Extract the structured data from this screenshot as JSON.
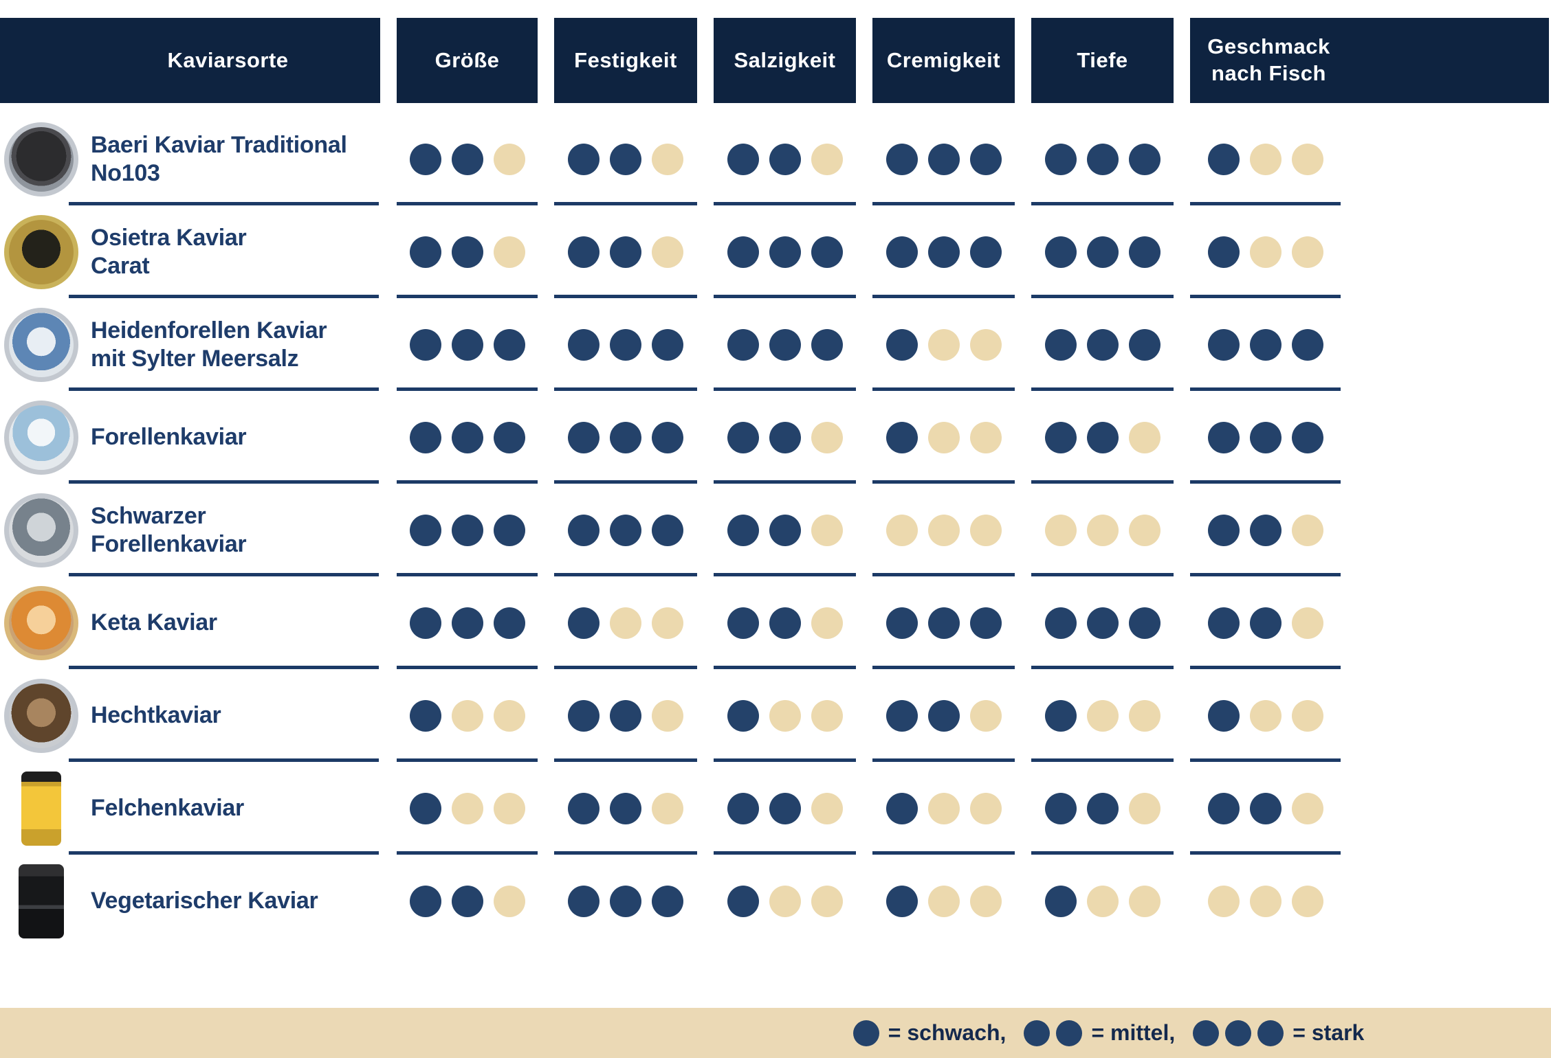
{
  "table": {
    "columns": [
      {
        "label": "Kaviarsorte"
      },
      {
        "label": "Größe"
      },
      {
        "label": "Festigkeit"
      },
      {
        "label": "Salzigkeit"
      },
      {
        "label": "Cremigkeit"
      },
      {
        "label": "Tiefe"
      },
      {
        "label": "Geschmack\nnach Fisch"
      }
    ],
    "max_rating": 3,
    "rows": [
      {
        "name": "Baeri Kaviar Traditional\nNo103",
        "image": "baeri",
        "ratings": [
          2,
          2,
          2,
          3,
          3,
          1
        ]
      },
      {
        "name": "Osietra Kaviar\nCarat",
        "image": "osietra",
        "ratings": [
          2,
          2,
          3,
          3,
          3,
          1
        ]
      },
      {
        "name": "Heidenforellen Kaviar\nmit Sylter Meersalz",
        "image": "heidenforellen",
        "ratings": [
          3,
          3,
          3,
          1,
          3,
          3
        ]
      },
      {
        "name": "Forellenkaviar",
        "image": "forellen",
        "ratings": [
          3,
          3,
          2,
          1,
          2,
          3
        ]
      },
      {
        "name": "Schwarzer\nForellenkaviar",
        "image": "schwarzer",
        "ratings": [
          3,
          3,
          2,
          0,
          0,
          2
        ]
      },
      {
        "name": "Keta Kaviar",
        "image": "keta",
        "ratings": [
          3,
          1,
          2,
          3,
          3,
          2
        ]
      },
      {
        "name": "Hechtkaviar",
        "image": "hecht",
        "ratings": [
          1,
          2,
          1,
          2,
          1,
          1
        ]
      },
      {
        "name": "Felchenkaviar",
        "image": "felchen",
        "ratings": [
          1,
          2,
          2,
          1,
          2,
          2
        ]
      },
      {
        "name": "Vegetarischer Kaviar",
        "image": "vegetarischer",
        "ratings": [
          2,
          3,
          1,
          1,
          1,
          0
        ]
      }
    ]
  },
  "legend": {
    "items": [
      {
        "dots": 1,
        "label": "= schwach,"
      },
      {
        "dots": 2,
        "label": "= mittel,"
      },
      {
        "dots": 3,
        "label": "= stark"
      }
    ]
  },
  "colors": {
    "header_bg": "#0E2340",
    "dot_filled": "#24426A",
    "dot_empty": "#ECD9AE",
    "row_line": "#1C3A66",
    "name_text": "#1E3C6A",
    "legend_bg": "#EBD9B5",
    "legend_text": "#14294D"
  },
  "chart_data": {
    "type": "table",
    "title": "Kaviarsorten Vergleich",
    "categories": [
      "Größe",
      "Festigkeit",
      "Salzigkeit",
      "Cremigkeit",
      "Tiefe",
      "Geschmack nach Fisch"
    ],
    "scale": {
      "min": 0,
      "max": 3,
      "legend": {
        "1": "schwach",
        "2": "mittel",
        "3": "stark"
      }
    },
    "series": [
      {
        "name": "Baeri Kaviar Traditional No103",
        "values": [
          2,
          2,
          2,
          3,
          3,
          1
        ]
      },
      {
        "name": "Osietra Kaviar Carat",
        "values": [
          2,
          2,
          3,
          3,
          3,
          1
        ]
      },
      {
        "name": "Heidenforellen Kaviar mit Sylter Meersalz",
        "values": [
          3,
          3,
          3,
          1,
          3,
          3
        ]
      },
      {
        "name": "Forellenkaviar",
        "values": [
          3,
          3,
          2,
          1,
          2,
          3
        ]
      },
      {
        "name": "Schwarzer Forellenkaviar",
        "values": [
          3,
          3,
          2,
          0,
          0,
          2
        ]
      },
      {
        "name": "Keta Kaviar",
        "values": [
          3,
          1,
          2,
          3,
          3,
          2
        ]
      },
      {
        "name": "Hechtkaviar",
        "values": [
          1,
          2,
          1,
          2,
          1,
          1
        ]
      },
      {
        "name": "Felchenkaviar",
        "values": [
          1,
          2,
          2,
          1,
          2,
          2
        ]
      },
      {
        "name": "Vegetarischer Kaviar",
        "values": [
          2,
          3,
          1,
          1,
          1,
          0
        ]
      }
    ],
    "legend_position": "bottom"
  }
}
